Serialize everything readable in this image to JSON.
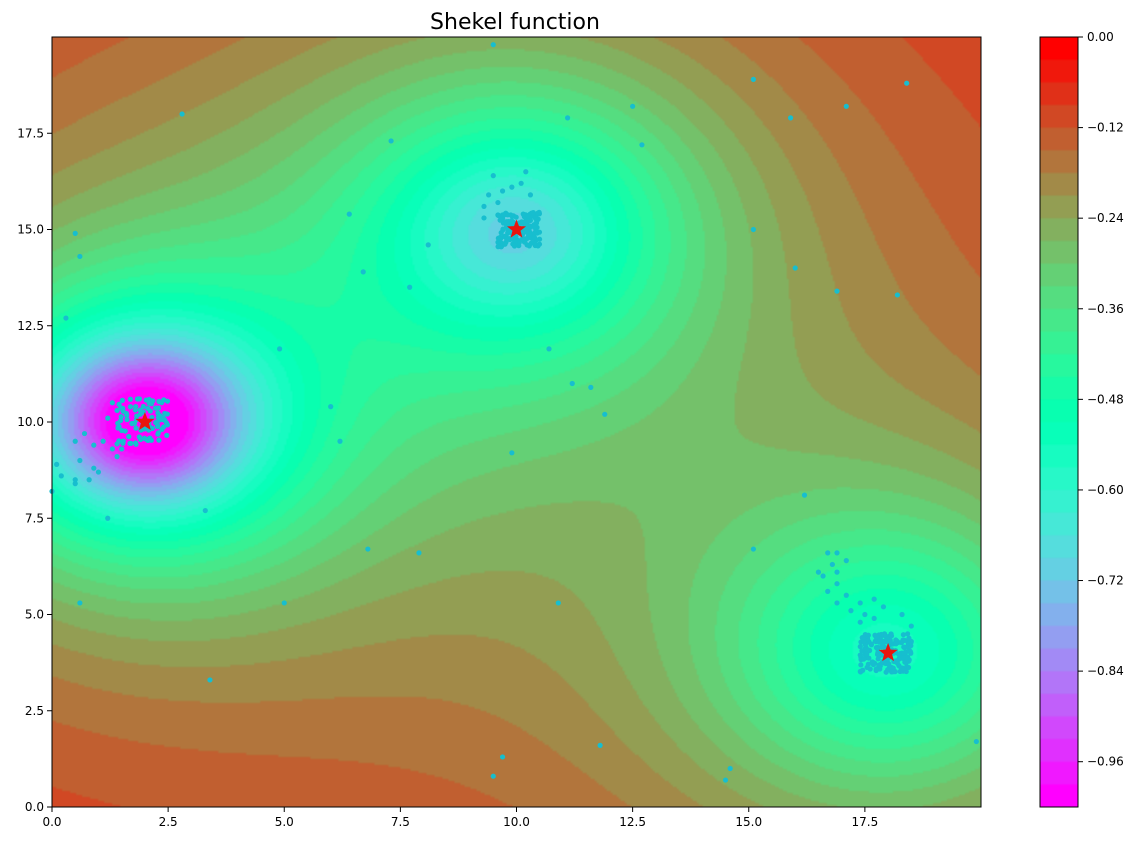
{
  "chart_data": {
    "type": "heatmap",
    "title": "Shekel function",
    "xlabel": "",
    "ylabel": "",
    "xlim": [
      0,
      20
    ],
    "ylim": [
      0,
      20
    ],
    "xticks": [
      "0.0",
      "2.5",
      "5.0",
      "7.5",
      "10.0",
      "12.5",
      "15.0",
      "17.5"
    ],
    "yticks": [
      "0.0",
      "2.5",
      "5.0",
      "7.5",
      "10.0",
      "12.5",
      "15.0",
      "17.5"
    ],
    "colormap": "rainbow",
    "colorbar": {
      "range": [
        -1.02,
        0.0
      ],
      "ticks": [
        "0.00",
        "-0.12",
        "-0.24",
        "-0.36",
        "-0.48",
        "-0.60",
        "-0.72",
        "-0.84",
        "-0.96"
      ]
    },
    "minima": [
      {
        "x": 2,
        "y": 10,
        "depth": -0.98,
        "c": 0.9
      },
      {
        "x": 10,
        "y": 15,
        "depth": -0.58,
        "c": 0.7
      },
      {
        "x": 18,
        "y": 4,
        "depth": -0.48,
        "c": 0.7
      }
    ],
    "scatter_color": "#17becf",
    "star_color": "#e8160e",
    "samples": [
      [
        9.5,
        19.8
      ],
      [
        2.8,
        18.0
      ],
      [
        7.3,
        17.3
      ],
      [
        11.1,
        17.9
      ],
      [
        12.5,
        18.2
      ],
      [
        12.7,
        17.2
      ],
      [
        15.1,
        18.9
      ],
      [
        15.9,
        17.9
      ],
      [
        17.1,
        18.2
      ],
      [
        18.4,
        18.8
      ],
      [
        0.5,
        14.9
      ],
      [
        0.6,
        14.3
      ],
      [
        0.3,
        12.7
      ],
      [
        6.4,
        15.4
      ],
      [
        6.7,
        13.9
      ],
      [
        7.7,
        13.5
      ],
      [
        8.1,
        14.6
      ],
      [
        15.1,
        15.0
      ],
      [
        16.0,
        14.0
      ],
      [
        16.9,
        13.4
      ],
      [
        18.2,
        13.3
      ],
      [
        4.9,
        11.9
      ],
      [
        10.7,
        11.9
      ],
      [
        11.2,
        11.0
      ],
      [
        11.6,
        10.9
      ],
      [
        11.9,
        10.2
      ],
      [
        6.0,
        10.4
      ],
      [
        6.2,
        9.5
      ],
      [
        9.9,
        9.2
      ],
      [
        0.1,
        8.9
      ],
      [
        0.2,
        8.6
      ],
      [
        0.0,
        8.2
      ],
      [
        0.5,
        8.5
      ],
      [
        1.2,
        7.5
      ],
      [
        3.3,
        7.7
      ],
      [
        16.2,
        8.1
      ],
      [
        15.1,
        6.7
      ],
      [
        6.8,
        6.7
      ],
      [
        7.9,
        6.6
      ],
      [
        0.6,
        5.3
      ],
      [
        5.0,
        5.3
      ],
      [
        10.9,
        5.3
      ],
      [
        3.4,
        3.3
      ],
      [
        11.8,
        1.6
      ],
      [
        9.7,
        1.3
      ],
      [
        9.5,
        0.8
      ],
      [
        14.6,
        1.0
      ],
      [
        14.5,
        0.7
      ],
      [
        19.9,
        1.7
      ],
      [
        0.5,
        9.5
      ],
      [
        0.7,
        9.7
      ],
      [
        0.9,
        9.4
      ],
      [
        1.1,
        9.5
      ],
      [
        0.6,
        9.0
      ],
      [
        0.9,
        8.8
      ],
      [
        1.0,
        8.7
      ],
      [
        0.8,
        8.5
      ],
      [
        0.5,
        8.4
      ],
      [
        1.3,
        9.3
      ],
      [
        1.4,
        9.1
      ],
      [
        1.5,
        9.3
      ],
      [
        1.2,
        10.1
      ],
      [
        1.4,
        10.3
      ],
      [
        1.3,
        10.5
      ],
      [
        9.3,
        15.3
      ],
      [
        9.3,
        15.6
      ],
      [
        9.4,
        15.9
      ],
      [
        9.5,
        16.4
      ],
      [
        9.7,
        16.0
      ],
      [
        9.9,
        16.1
      ],
      [
        10.1,
        16.2
      ],
      [
        10.2,
        16.5
      ],
      [
        10.3,
        15.9
      ],
      [
        9.6,
        15.7
      ],
      [
        16.7,
        6.6
      ],
      [
        16.9,
        6.6
      ],
      [
        16.8,
        6.3
      ],
      [
        16.5,
        6.1
      ],
      [
        16.6,
        6.0
      ],
      [
        16.9,
        6.1
      ],
      [
        17.1,
        6.4
      ],
      [
        16.9,
        5.8
      ],
      [
        16.7,
        5.6
      ],
      [
        16.9,
        5.3
      ],
      [
        17.1,
        5.5
      ],
      [
        17.2,
        5.1
      ],
      [
        17.4,
        5.3
      ],
      [
        17.5,
        5.0
      ],
      [
        17.7,
        5.4
      ],
      [
        17.9,
        5.2
      ],
      [
        17.7,
        4.9
      ],
      [
        17.4,
        4.8
      ],
      [
        18.3,
        5.0
      ],
      [
        18.5,
        4.7
      ]
    ],
    "clusters": [
      {
        "x0": 9.6,
        "x1": 10.5,
        "y0": 14.55,
        "y1": 15.45,
        "n": 160,
        "seed": 7
      },
      {
        "x0": 17.4,
        "x1": 18.5,
        "y0": 3.5,
        "y1": 4.5,
        "n": 180,
        "seed": 11
      },
      {
        "x0": 1.4,
        "x1": 2.5,
        "y0": 9.4,
        "y1": 10.6,
        "n": 100,
        "seed": 23
      }
    ]
  }
}
